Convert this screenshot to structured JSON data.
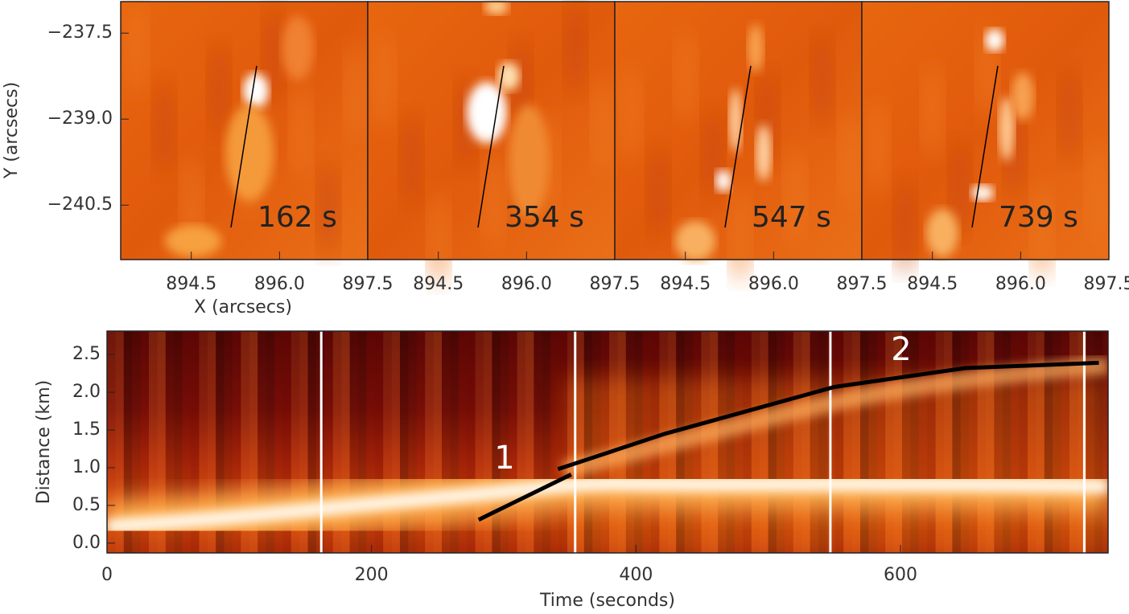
{
  "chart_data": [
    {
      "type": "image",
      "xlabel": "X (arcsecs)",
      "ylabel": "Y (arcsecs)",
      "panels": [
        {
          "label": "162 s"
        },
        {
          "label": "354 s"
        },
        {
          "label": "547 s"
        },
        {
          "label": "739 s"
        }
      ],
      "xlim": [
        893.3,
        897.5
      ],
      "xticks": [
        894.5,
        {
          "value": 896.0,
          "label": "896.0"
        },
        897.5
      ],
      "ylim": [
        -241.45,
        -236.95
      ],
      "yticks": [
        {
          "value": -237.5,
          "label": "−237.5"
        },
        {
          "value": -239.0,
          "label": "−239.0"
        },
        {
          "value": -240.5,
          "label": "−240.5"
        }
      ]
    },
    {
      "type": "line",
      "xlabel": "Time (seconds)",
      "ylabel": "Distance (km)",
      "xlim": [
        0,
        757
      ],
      "xticks": [
        0,
        200,
        400,
        600
      ],
      "ylim": [
        -0.13,
        2.81
      ],
      "yticks": [
        {
          "value": 0,
          "label": "0.0"
        },
        0.5,
        {
          "value": 1,
          "label": "1.0"
        },
        1.5,
        {
          "value": 2,
          "label": "2.0"
        },
        2.5
      ],
      "markers": [
        162,
        354,
        547,
        739
      ],
      "marker_color": "#ffffff",
      "series": [
        {
          "color": "#000000",
          "x": [
            281,
            351
          ],
          "values": [
            0.31,
            0.91
          ]
        },
        {
          "color": "#000000",
          "x": [
            341,
            422,
            550,
            649,
            750
          ],
          "values": [
            0.98,
            1.45,
            2.07,
            2.32,
            2.39
          ]
        }
      ],
      "annotations": [
        "1",
        "2"
      ]
    }
  ]
}
